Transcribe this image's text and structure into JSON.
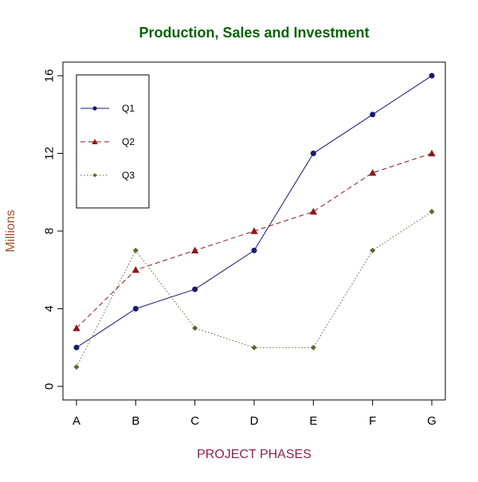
{
  "chart_data": {
    "type": "line",
    "title": "Production, Sales and Investment",
    "xlabel": "PROJECT PHASES",
    "ylabel": "Millions",
    "categories": [
      "A",
      "B",
      "C",
      "D",
      "E",
      "F",
      "G"
    ],
    "yticks": [
      0,
      4,
      8,
      12,
      16
    ],
    "ylim": [
      -0.7,
      16.7
    ],
    "grid": false,
    "legend_position": "top-left",
    "series": [
      {
        "name": "Q1",
        "values": [
          2,
          4,
          5,
          7,
          12,
          14,
          16
        ],
        "color": "#191970",
        "line_style": "solid",
        "marker": "circle"
      },
      {
        "name": "Q2",
        "values": [
          3,
          6,
          7,
          8,
          9,
          11,
          12
        ],
        "color": "#8b1a1a",
        "line_style": "dashed",
        "marker": "triangle"
      },
      {
        "name": "Q3",
        "values": [
          1,
          7,
          3,
          2,
          2,
          7,
          9
        ],
        "color": "#556b2f",
        "line_style": "dotted",
        "marker": "diamond"
      }
    ]
  },
  "colors": {
    "title": "#006400",
    "xlabel": "#8b2252",
    "ylabel": "#a0522d",
    "axis": "#000000"
  }
}
